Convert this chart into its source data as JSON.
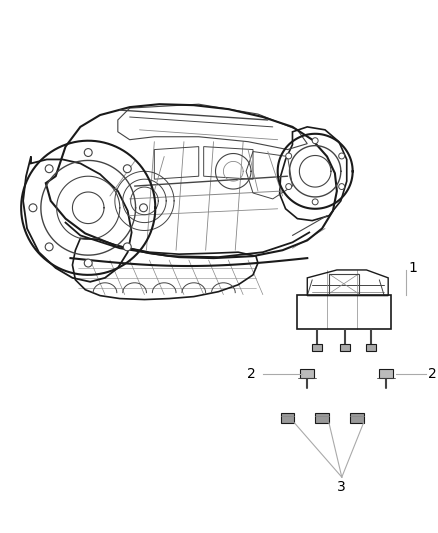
{
  "bg_color": "#ffffff",
  "fig_width": 4.38,
  "fig_height": 5.33,
  "dpi": 100,
  "label_1": "1",
  "label_2": "2",
  "label_3": "3",
  "line_color": "#aaaaaa",
  "text_color": "#000000",
  "font_size": 9,
  "edge_color_dark": "#1a1a1a",
  "edge_color_mid": "#444444",
  "edge_color_light": "#888888"
}
